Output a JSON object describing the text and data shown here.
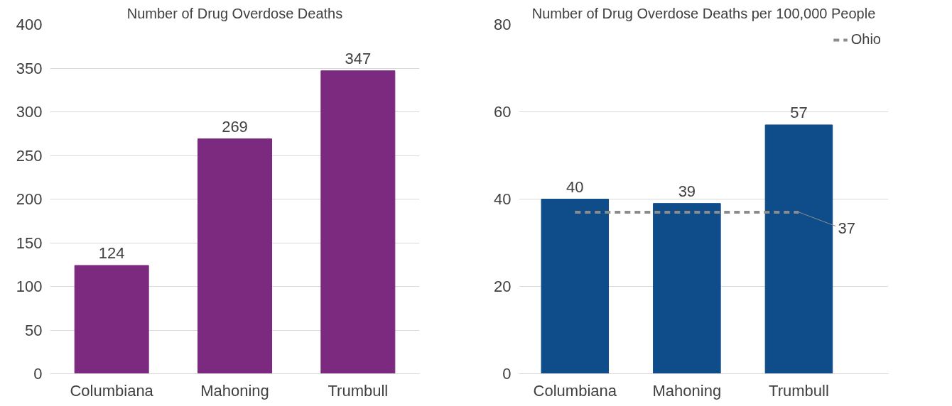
{
  "chart_data": [
    {
      "type": "bar",
      "title": "Number of Drug Overdose Deaths",
      "categories": [
        "Columbiana",
        "Mahoning",
        "Trumbull"
      ],
      "series": [
        {
          "color": "#7b2a7f",
          "values": [
            124,
            269,
            347
          ]
        }
      ],
      "data_labels": true,
      "ylim": [
        0,
        400
      ],
      "yticks": [
        0,
        50,
        100,
        150,
        200,
        250,
        300,
        350,
        400
      ],
      "grid": "y"
    },
    {
      "type": "bar",
      "title": "Number of Drug Overdose Deaths per 100,000 People",
      "categories": [
        "Columbiana",
        "Mahoning",
        "Trumbull"
      ],
      "series": [
        {
          "color": "#0e4c8a",
          "values": [
            40,
            39,
            57
          ],
          "value_labels": [
            "40",
            "39",
            "57"
          ]
        },
        {
          "type": "line",
          "name": "Ohio",
          "color": "#8c8c8c",
          "line_style": "dashed",
          "values": [
            37,
            37,
            37
          ],
          "value_labels": [
            null,
            null,
            "37"
          ]
        }
      ],
      "ylim": [
        0,
        80
      ],
      "yticks": [
        0,
        20,
        40,
        60,
        80
      ],
      "grid": "y",
      "legend": "top right"
    }
  ]
}
